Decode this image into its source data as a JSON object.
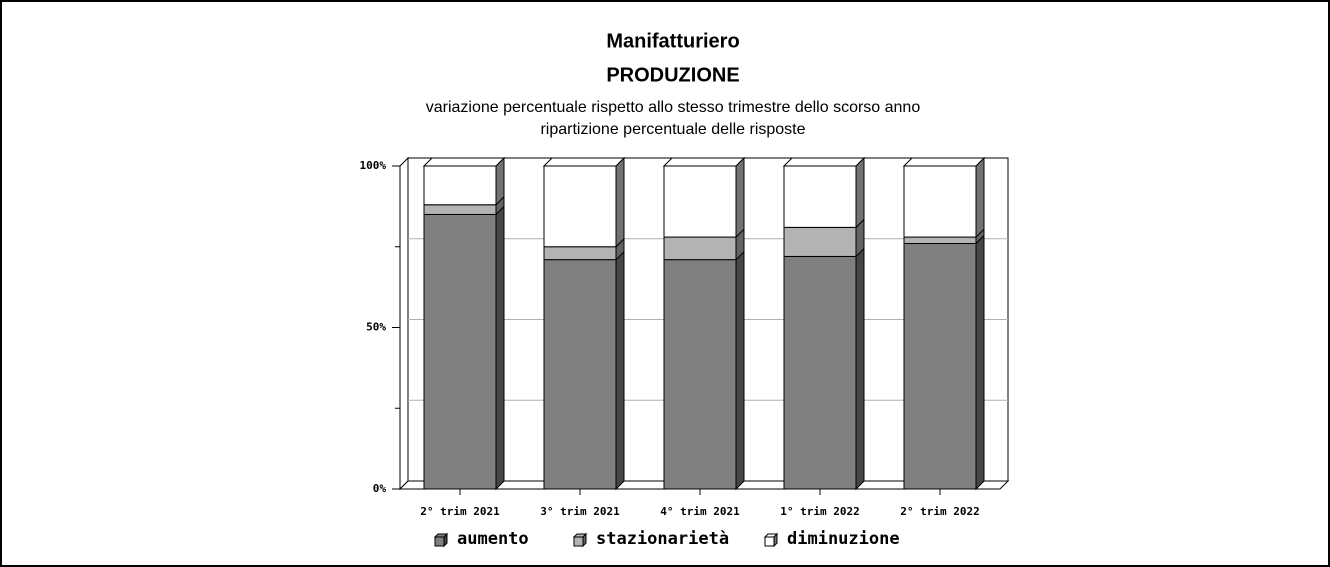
{
  "chart_data": {
    "type": "bar3d_stacked",
    "title": "Manifatturiero",
    "subtitle": "PRODUZIONE",
    "notes": [
      "variazione percentuale rispetto allo stesso trimestre dello scorso anno",
      "ripartizione percentuale delle risposte"
    ],
    "categories": [
      "2° trim 2021",
      "3° trim 2021",
      "4° trim 2021",
      "1° trim 2022",
      "2° trim 2022"
    ],
    "series": [
      {
        "name": "aumento",
        "color": "#808080",
        "values": [
          85,
          71,
          71,
          72,
          76
        ]
      },
      {
        "name": "stazionarietà",
        "color": "#b4b4b4",
        "values": [
          3,
          4,
          7,
          9,
          2
        ]
      },
      {
        "name": "diminuzione",
        "color": "#ffffff",
        "values": [
          12,
          25,
          22,
          19,
          22
        ]
      }
    ],
    "ylim": [
      0,
      100
    ],
    "yticks": [
      {
        "value": 0,
        "label": "0%"
      },
      {
        "value": 50,
        "label": "50%"
      },
      {
        "value": 100,
        "label": "100%"
      }
    ],
    "grid_yticks": [
      25,
      50,
      75
    ],
    "grid": true,
    "legend": "bottom"
  }
}
